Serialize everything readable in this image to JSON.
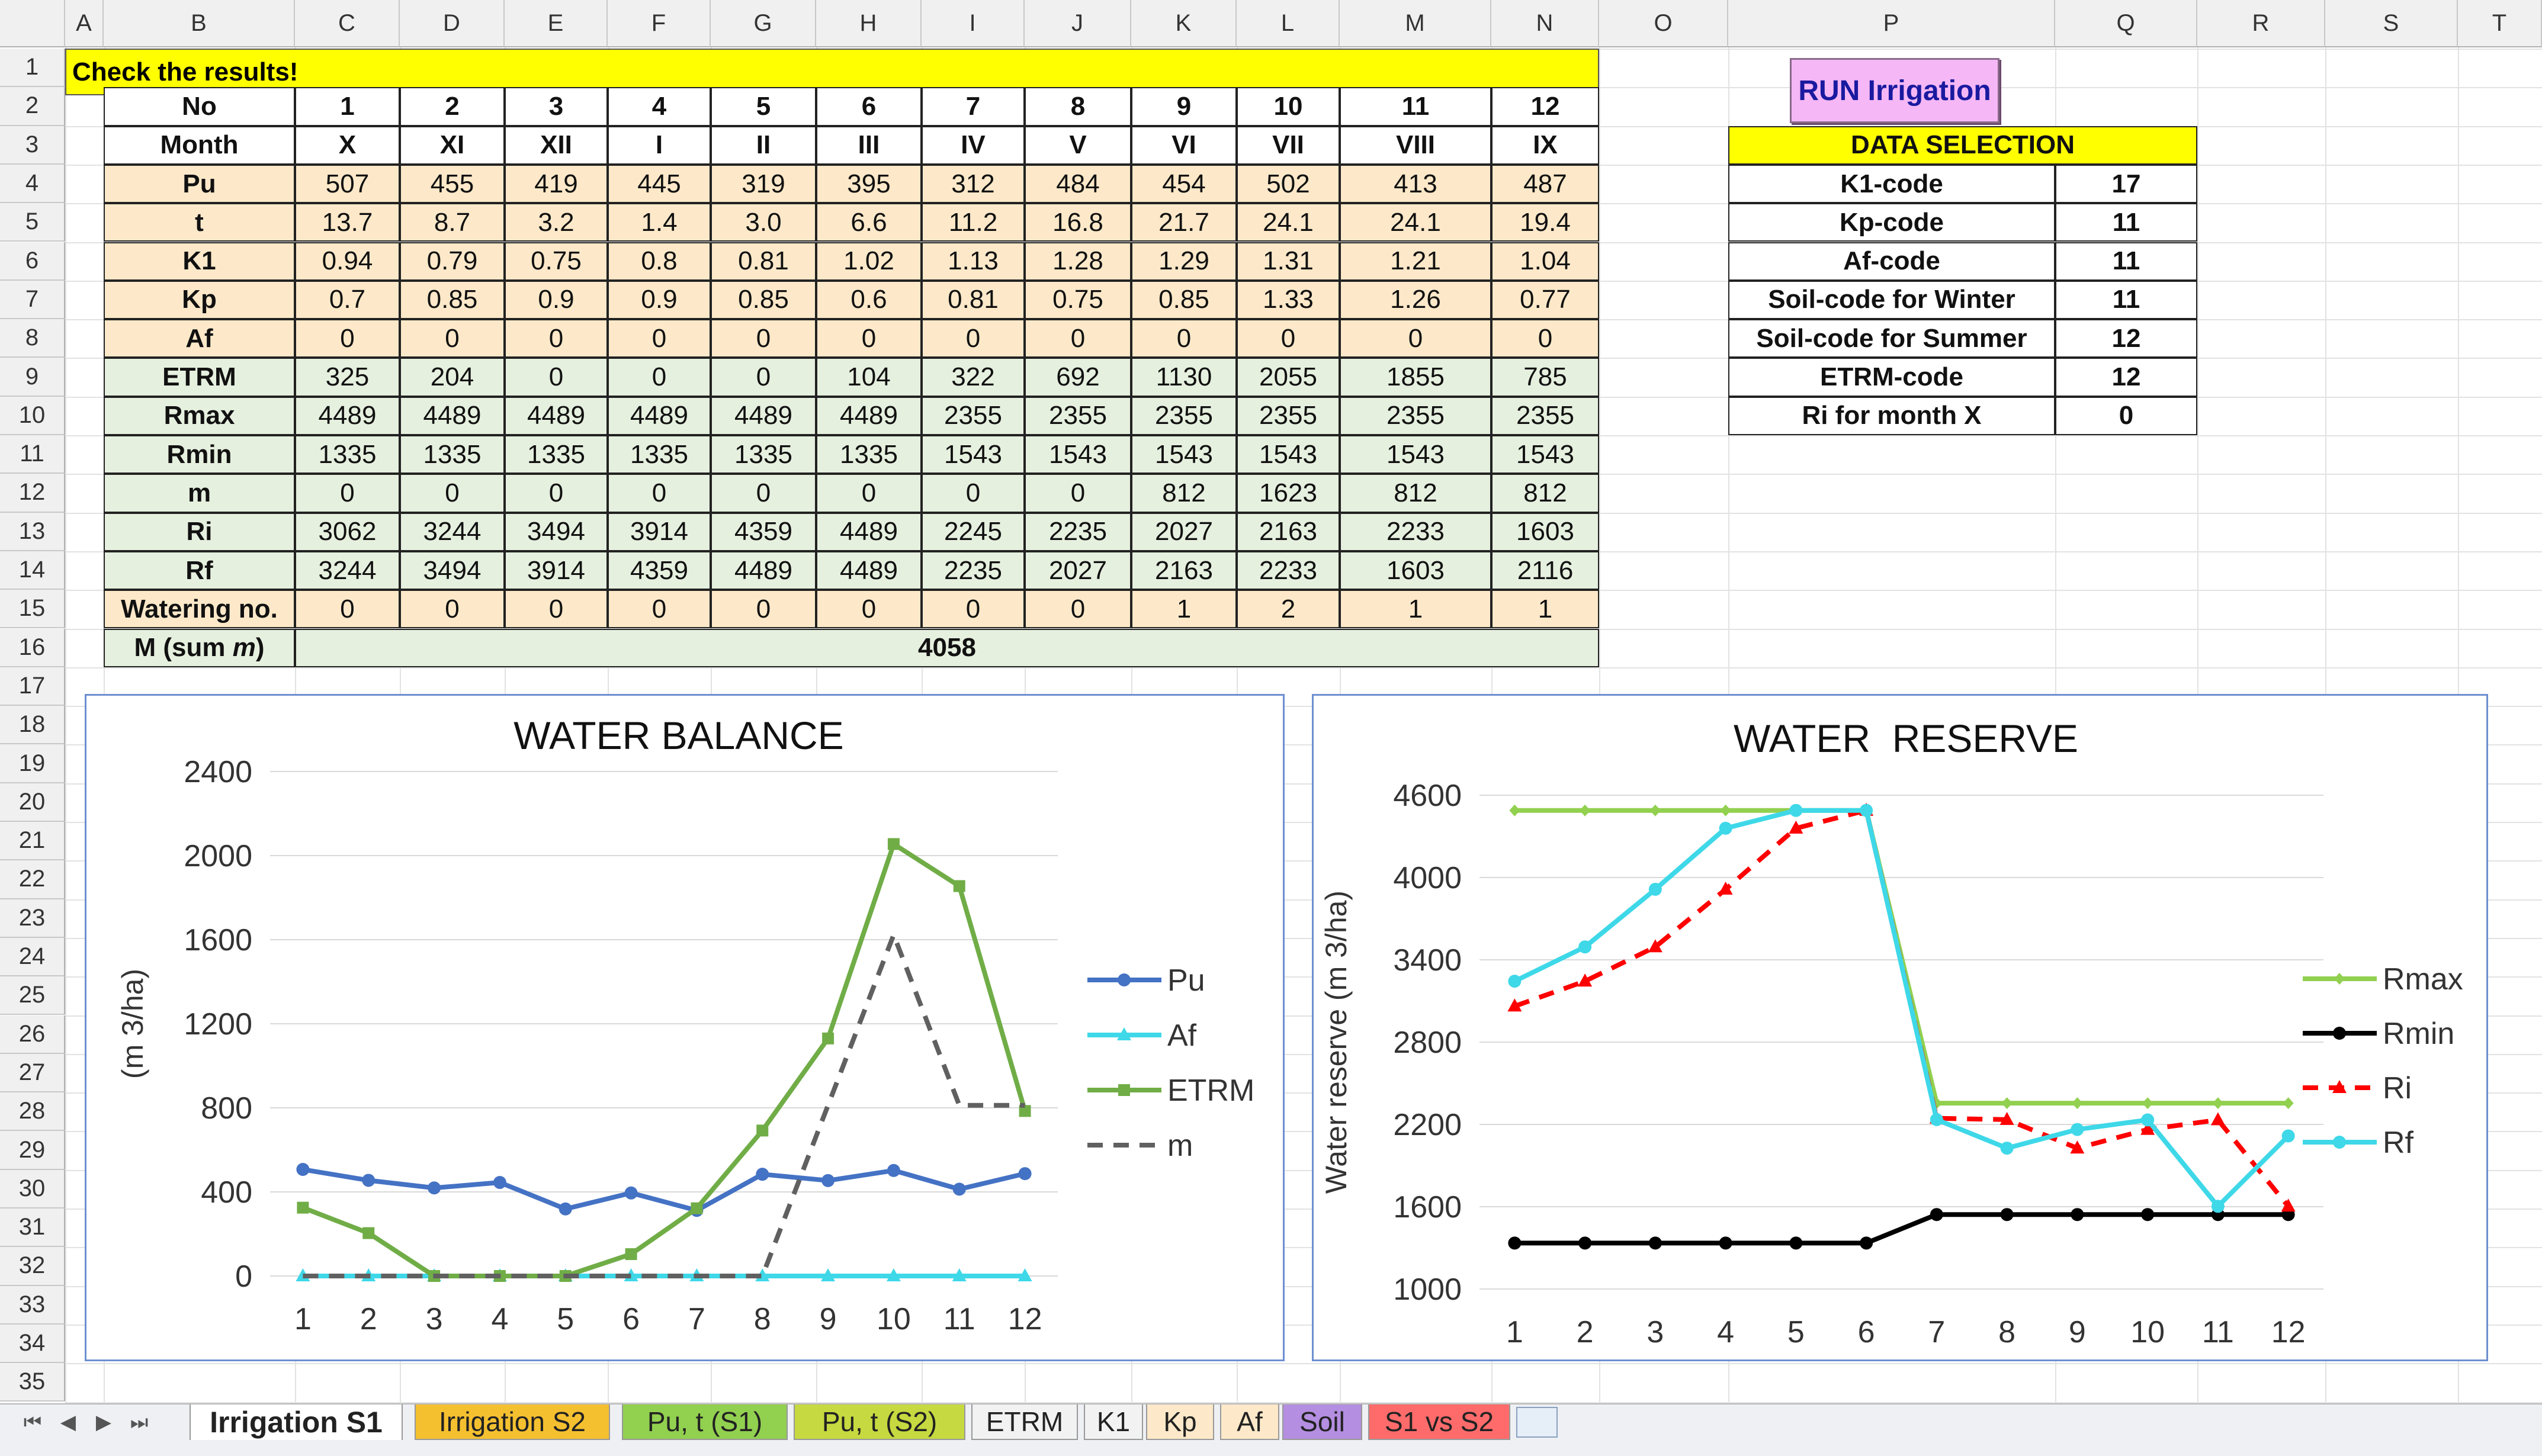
{
  "columns": [
    "A",
    "B",
    "C",
    "D",
    "E",
    "F",
    "G",
    "H",
    "I",
    "J",
    "K",
    "L",
    "M",
    "N",
    "O",
    "P",
    "Q",
    "R",
    "S",
    "T"
  ],
  "rows": [
    "1",
    "2",
    "3",
    "4",
    "5",
    "6",
    "7",
    "8",
    "9",
    "10",
    "11",
    "12",
    "13",
    "14",
    "15",
    "16",
    "17",
    "18",
    "19",
    "20",
    "21",
    "22",
    "23",
    "24",
    "25",
    "26",
    "27",
    "28",
    "29",
    "30",
    "31",
    "32",
    "33",
    "34",
    "35"
  ],
  "banner": "Check the results!",
  "run_button": "RUN Irrigation",
  "table": {
    "header_no": "No",
    "numbers": [
      "1",
      "2",
      "3",
      "4",
      "5",
      "6",
      "7",
      "8",
      "9",
      "10",
      "11",
      "12"
    ],
    "rows": [
      {
        "label": "Month",
        "values": [
          "X",
          "XI",
          "XII",
          "I",
          "II",
          "III",
          "IV",
          "V",
          "VI",
          "VII",
          "VIII",
          "IX"
        ]
      },
      {
        "label": "Pu",
        "values": [
          "507",
          "455",
          "419",
          "445",
          "319",
          "395",
          "312",
          "484",
          "454",
          "502",
          "413",
          "487"
        ]
      },
      {
        "label": "t",
        "values": [
          "13.7",
          "8.7",
          "3.2",
          "1.4",
          "3.0",
          "6.6",
          "11.2",
          "16.8",
          "21.7",
          "24.1",
          "24.1",
          "19.4"
        ]
      },
      {
        "label": "K1",
        "values": [
          "0.94",
          "0.79",
          "0.75",
          "0.8",
          "0.81",
          "1.02",
          "1.13",
          "1.28",
          "1.29",
          "1.31",
          "1.21",
          "1.04"
        ]
      },
      {
        "label": "Kp",
        "values": [
          "0.7",
          "0.85",
          "0.9",
          "0.9",
          "0.85",
          "0.6",
          "0.81",
          "0.75",
          "0.85",
          "1.33",
          "1.26",
          "0.77"
        ]
      },
      {
        "label": "Af",
        "values": [
          "0",
          "0",
          "0",
          "0",
          "0",
          "0",
          "0",
          "0",
          "0",
          "0",
          "0",
          "0"
        ]
      },
      {
        "label": "ETRM",
        "values": [
          "325",
          "204",
          "0",
          "0",
          "0",
          "104",
          "322",
          "692",
          "1130",
          "2055",
          "1855",
          "785"
        ]
      },
      {
        "label": "Rmax",
        "values": [
          "4489",
          "4489",
          "4489",
          "4489",
          "4489",
          "4489",
          "2355",
          "2355",
          "2355",
          "2355",
          "2355",
          "2355"
        ]
      },
      {
        "label": "Rmin",
        "values": [
          "1335",
          "1335",
          "1335",
          "1335",
          "1335",
          "1335",
          "1543",
          "1543",
          "1543",
          "1543",
          "1543",
          "1543"
        ]
      },
      {
        "label": "m",
        "values": [
          "0",
          "0",
          "0",
          "0",
          "0",
          "0",
          "0",
          "0",
          "812",
          "1623",
          "812",
          "812"
        ]
      },
      {
        "label": "Ri",
        "values": [
          "3062",
          "3244",
          "3494",
          "3914",
          "4359",
          "4489",
          "2245",
          "2235",
          "2027",
          "2163",
          "2233",
          "1603"
        ]
      },
      {
        "label": "Rf",
        "values": [
          "3244",
          "3494",
          "3914",
          "4359",
          "4489",
          "4489",
          "2235",
          "2027",
          "2163",
          "2233",
          "1603",
          "2116"
        ]
      },
      {
        "label": "Watering no.",
        "values": [
          "0",
          "0",
          "0",
          "0",
          "0",
          "0",
          "0",
          "0",
          "1",
          "2",
          "1",
          "1"
        ]
      }
    ],
    "sum_label_prefix": "M (sum ",
    "sum_label_italic": "m",
    "sum_label_suffix": ")",
    "sum_value": "4058"
  },
  "data_selection": {
    "title": "DATA SELECTION",
    "rows": [
      {
        "label": "K1-code",
        "value": "17"
      },
      {
        "label": "Kp-code",
        "value": "11"
      },
      {
        "label": "Af-code",
        "value": "11"
      },
      {
        "label": "Soil-code for Winter",
        "value": "11"
      },
      {
        "label": "Soil-code for Summer",
        "value": "12"
      },
      {
        "label": "ETRM-code",
        "value": "12"
      },
      {
        "label": "Ri for month X",
        "value": "0"
      }
    ]
  },
  "chart_data": [
    {
      "type": "line",
      "title": "WATER BALANCE",
      "ylabel": "(m 3/ha)",
      "xlabel": "",
      "categories": [
        "1",
        "2",
        "3",
        "4",
        "5",
        "6",
        "7",
        "8",
        "9",
        "10",
        "11",
        "12"
      ],
      "yticks": [
        "0",
        "400",
        "800",
        "1200",
        "1600",
        "2000",
        "2400"
      ],
      "ylim": [
        0,
        2400
      ],
      "series": [
        {
          "name": "Pu",
          "color": "#4472c4",
          "marker": "circle",
          "dash": false,
          "values": [
            507,
            455,
            419,
            445,
            319,
            395,
            312,
            484,
            454,
            502,
            413,
            487
          ]
        },
        {
          "name": "Af",
          "color": "#3ed8e8",
          "marker": "triangle",
          "dash": false,
          "values": [
            0,
            0,
            0,
            0,
            0,
            0,
            0,
            0,
            0,
            0,
            0,
            0
          ]
        },
        {
          "name": "ETRM",
          "color": "#70ad47",
          "marker": "square",
          "dash": false,
          "values": [
            325,
            204,
            0,
            0,
            0,
            104,
            322,
            692,
            1130,
            2055,
            1855,
            785
          ]
        },
        {
          "name": "m",
          "color": "#606060",
          "marker": "none",
          "dash": true,
          "values": [
            0,
            0,
            0,
            0,
            0,
            0,
            0,
            0,
            812,
            1623,
            812,
            812
          ]
        }
      ]
    },
    {
      "type": "line",
      "title": "WATER  RESERVE",
      "ylabel": "Water reserve (m 3/ha)",
      "xlabel": "",
      "categories": [
        "1",
        "2",
        "3",
        "4",
        "5",
        "6",
        "7",
        "8",
        "9",
        "10",
        "11",
        "12"
      ],
      "yticks": [
        "1000",
        "1600",
        "2200",
        "2800",
        "3400",
        "4000",
        "4600"
      ],
      "ylim": [
        1000,
        4600
      ],
      "series": [
        {
          "name": "Rmax",
          "color": "#92d050",
          "marker": "diamond",
          "dash": false,
          "values": [
            4489,
            4489,
            4489,
            4489,
            4489,
            4489,
            2355,
            2355,
            2355,
            2355,
            2355,
            2355
          ]
        },
        {
          "name": "Rmin",
          "color": "#000000",
          "marker": "circle",
          "dash": false,
          "values": [
            1335,
            1335,
            1335,
            1335,
            1335,
            1335,
            1543,
            1543,
            1543,
            1543,
            1543,
            1543
          ]
        },
        {
          "name": "Ri",
          "color": "#ff0000",
          "marker": "triangle",
          "dash": true,
          "values": [
            3062,
            3244,
            3494,
            3914,
            4359,
            4489,
            2245,
            2235,
            2027,
            2163,
            2233,
            1603
          ]
        },
        {
          "name": "Rf",
          "color": "#3ed8e8",
          "marker": "circle",
          "dash": false,
          "values": [
            3244,
            3494,
            3914,
            4359,
            4489,
            4489,
            2235,
            2027,
            2163,
            2233,
            1603,
            2116
          ]
        }
      ]
    }
  ],
  "tabs": [
    {
      "label": "Irrigation S1",
      "color": "#ffffff",
      "active": true
    },
    {
      "label": "Irrigation S2",
      "color": "#f5c030",
      "active": false
    },
    {
      "label": "Pu, t (S1)",
      "color": "#92d050",
      "active": false
    },
    {
      "label": "Pu, t (S2)",
      "color": "#c6d940",
      "active": false
    },
    {
      "label": "ETRM",
      "color": "#f2f2f2",
      "active": false
    },
    {
      "label": "K1",
      "color": "#f2f2f2",
      "active": false
    },
    {
      "label": "Kp",
      "color": "#fde9c9",
      "active": false
    },
    {
      "label": "Af",
      "color": "#fde9c9",
      "active": false
    },
    {
      "label": "Soil",
      "color": "#b48ee0",
      "active": false
    },
    {
      "label": "S1 vs S2",
      "color": "#ff6b6b",
      "active": false
    }
  ],
  "nav_arrows": [
    "⏮",
    "◀",
    "▶",
    "⏭"
  ],
  "new_sheet_icon": "new-sheet-icon"
}
